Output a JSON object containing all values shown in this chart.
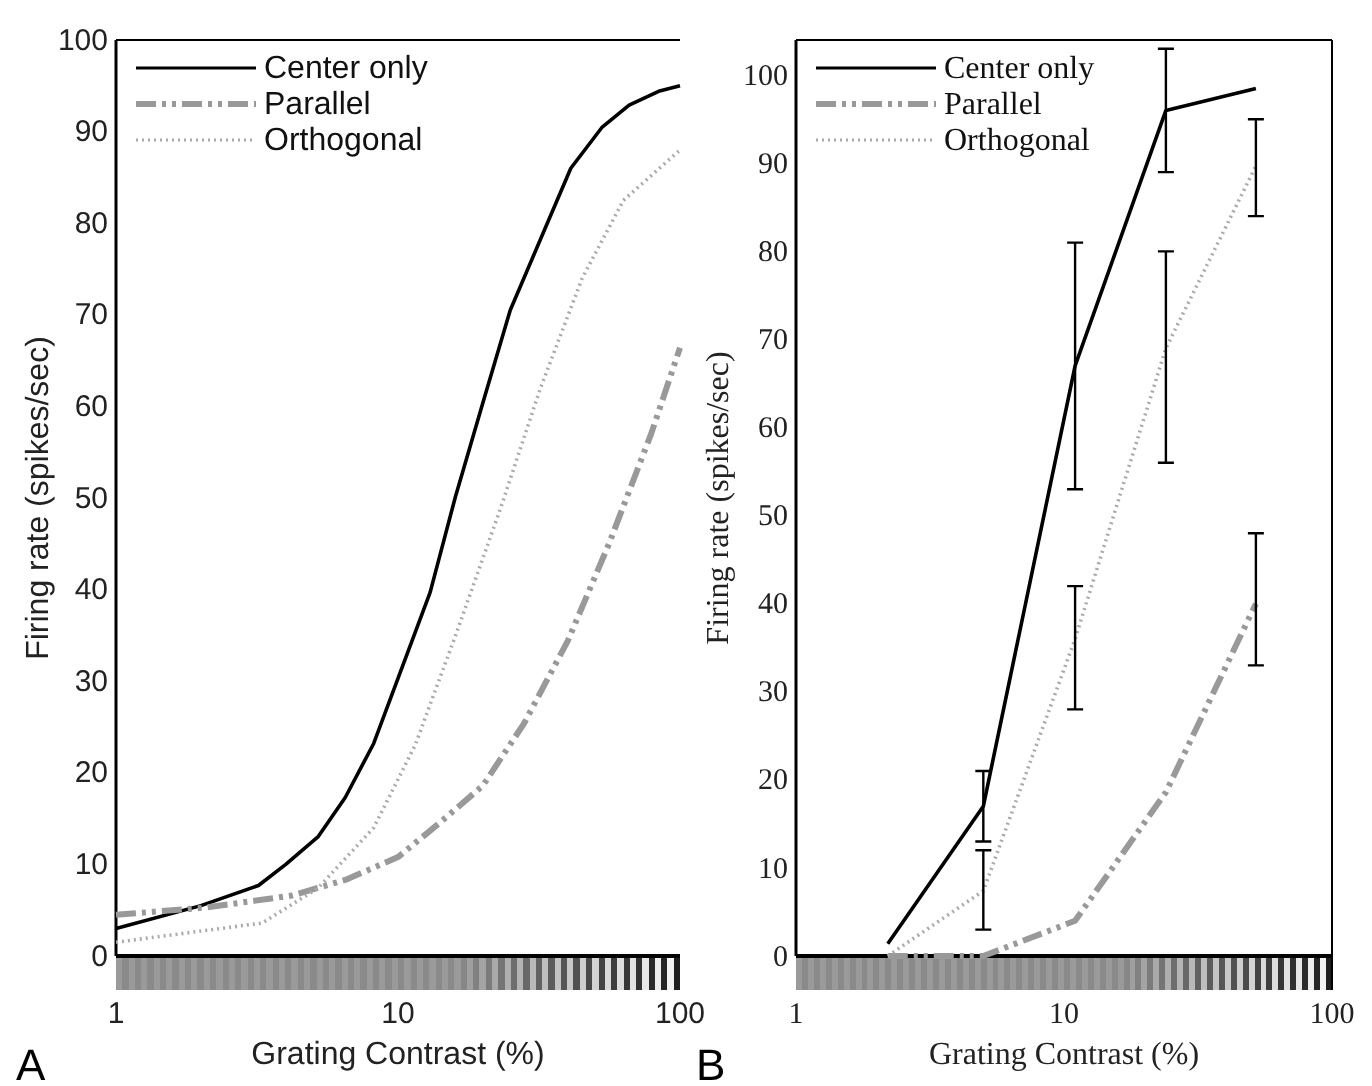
{
  "chart_data": [
    {
      "type": "line",
      "xlabel": "Grating Contrast (%)",
      "ylabel": "Firing rate (spikes/sec)",
      "log": "x",
      "xlim": [
        1,
        100
      ],
      "xticks": [
        1,
        10,
        100
      ],
      "ylim": [
        0,
        100
      ],
      "yticks": [
        0,
        10,
        20,
        30,
        40,
        50,
        60,
        70,
        80,
        90,
        100
      ],
      "grid": false,
      "legend": "top left",
      "annotations": [
        "A"
      ],
      "series": [
        {
          "name": "Center only",
          "color": "#000000",
          "line_style": "solid",
          "x": [
            1,
            2,
            3.2,
            4,
            5.2,
            6.5,
            8.2,
            10,
            13,
            16,
            20,
            25,
            33,
            41,
            53,
            66,
            84,
            100
          ],
          "values": [
            3,
            5.5,
            7.7,
            10,
            13,
            17.3,
            23.2,
            30.3,
            39.7,
            50.2,
            60.4,
            70.5,
            79.2,
            86,
            90.5,
            92.9,
            94.4,
            95
          ]
        },
        {
          "name": "Parallel",
          "color": "#999999",
          "line_style": "dashed",
          "x": [
            1,
            2.1,
            4.2,
            6.5,
            10,
            14,
            20,
            28,
            40,
            56,
            79,
            100
          ],
          "values": [
            4.5,
            5.3,
            6.6,
            8.3,
            10.8,
            14.5,
            18.6,
            25.4,
            34.4,
            45,
            57,
            66.4
          ]
        },
        {
          "name": "Orthogonal",
          "color": "#aaaaaa",
          "line_style": "dotted",
          "x": [
            1,
            3.3,
            5.2,
            8.2,
            11.5,
            16,
            23,
            32,
            45,
            63,
            100
          ],
          "values": [
            1.5,
            3.6,
            7.4,
            14,
            23,
            35,
            48.7,
            62,
            74,
            82.5,
            88
          ]
        }
      ]
    },
    {
      "type": "line",
      "xlabel": "Grating Contrast (%)",
      "ylabel": "Firing rate (spikes/sec)",
      "log": "x",
      "xlim": [
        1,
        100
      ],
      "xticks": [
        1,
        10,
        100
      ],
      "ylim": [
        0,
        104
      ],
      "yticks": [
        0,
        10,
        20,
        30,
        40,
        50,
        60,
        70,
        80,
        90,
        100
      ],
      "grid": false,
      "legend": "top left",
      "annotations": [
        "B"
      ],
      "series": [
        {
          "name": "Center only",
          "color": "#000000",
          "line_style": "solid",
          "x": [
            2.2,
            5,
            11,
            24,
            52
          ],
          "values": [
            1.4,
            17,
            67,
            96,
            98.5
          ],
          "errors": [
            null,
            [
              13,
              21
            ],
            [
              53,
              81
            ],
            [
              89,
              103
            ],
            null
          ]
        },
        {
          "name": "Parallel",
          "color": "#999999",
          "line_style": "dashed",
          "x": [
            2.2,
            5,
            11,
            24,
            52
          ],
          "values": [
            0,
            0,
            4,
            18.6,
            40
          ],
          "errors": [
            null,
            null,
            null,
            null,
            [
              33,
              48
            ]
          ]
        },
        {
          "name": "Orthogonal",
          "color": "#aaaaaa",
          "line_style": "dotted",
          "x": [
            2.2,
            5,
            11,
            24,
            52
          ],
          "values": [
            0,
            7.4,
            36,
            69,
            89.7
          ],
          "errors": [
            null,
            [
              3,
              12
            ],
            [
              28,
              42
            ],
            [
              56,
              80
            ],
            [
              84,
              95
            ]
          ]
        }
      ]
    }
  ]
}
